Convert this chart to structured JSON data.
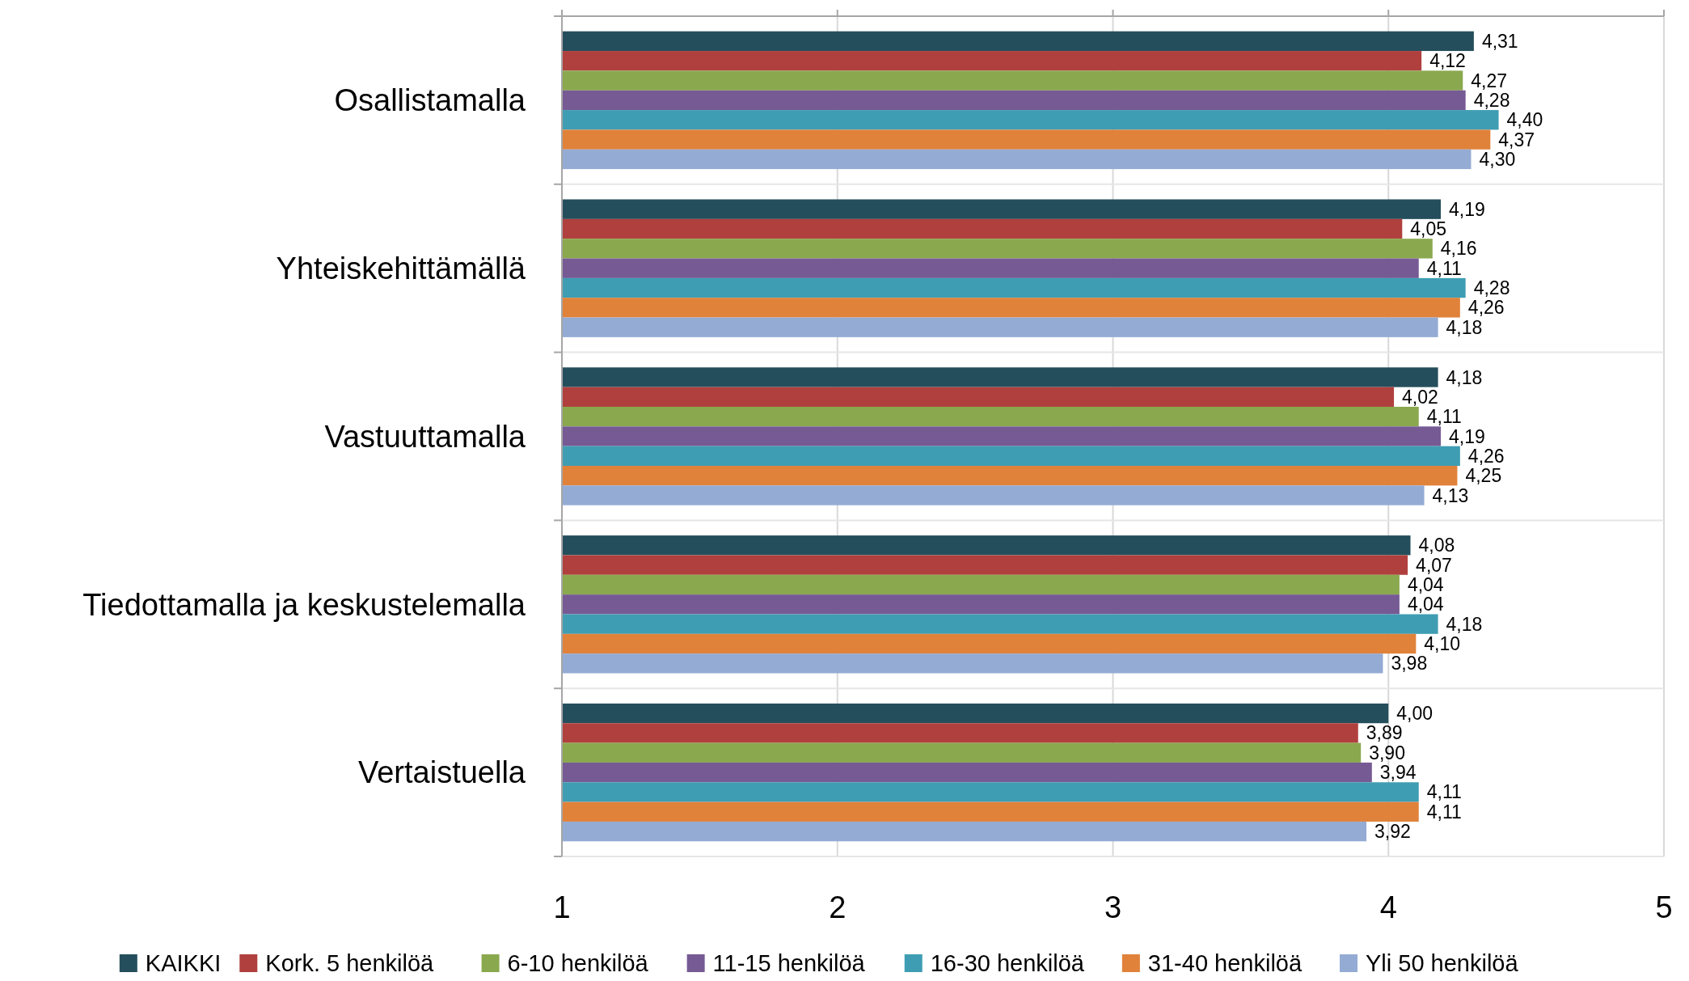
{
  "chart_data": {
    "type": "bar",
    "orientation": "horizontal",
    "categories": [
      "Osallistamalla",
      "Yhteiskehittämällä",
      "Vastuuttamalla",
      "Tiedottamalla ja keskustelemalla",
      "Vertaistuella"
    ],
    "series": [
      {
        "name": "KAIKKI",
        "color": "#254e5c",
        "values": [
          4.31,
          4.19,
          4.18,
          4.08,
          4.0
        ],
        "value_labels": [
          "4,31",
          "4,19",
          "4,18",
          "4,08",
          "4,00"
        ]
      },
      {
        "name": "Kork. 5 henkilöä",
        "color": "#b0403e",
        "values": [
          4.12,
          4.05,
          4.02,
          4.07,
          3.89
        ],
        "value_labels": [
          "4,12",
          "4,05",
          "4,02",
          "4,07",
          "3,89"
        ]
      },
      {
        "name": "6-10 henkilöä",
        "color": "#8aa84e",
        "values": [
          4.27,
          4.16,
          4.11,
          4.04,
          3.9
        ],
        "value_labels": [
          "4,27",
          "4,16",
          "4,11",
          "4,04",
          "3,90"
        ]
      },
      {
        "name": "11-15 henkilöä",
        "color": "#765a94",
        "values": [
          4.28,
          4.11,
          4.19,
          4.04,
          3.94
        ],
        "value_labels": [
          "4,28",
          "4,11",
          "4,19",
          "4,04",
          "3,94"
        ]
      },
      {
        "name": "16-30 henkilöä",
        "color": "#3f9db3",
        "values": [
          4.4,
          4.28,
          4.26,
          4.18,
          4.11
        ],
        "value_labels": [
          "4,40",
          "4,28",
          "4,26",
          "4,18",
          "4,11"
        ]
      },
      {
        "name": "31-40 henkilöä",
        "color": "#e0823a",
        "values": [
          4.37,
          4.26,
          4.25,
          4.1,
          4.11
        ],
        "value_labels": [
          "4,37",
          "4,26",
          "4,25",
          "4,10",
          "4,11"
        ]
      },
      {
        "name": "Yli 50 henkilöä",
        "color": "#94abd4",
        "values": [
          4.3,
          4.18,
          4.13,
          3.98,
          3.92
        ],
        "value_labels": [
          "4,30",
          "4,18",
          "4,13",
          "3,98",
          "3,92"
        ]
      }
    ],
    "xlim": [
      1,
      5
    ],
    "xticks": [
      1,
      2,
      3,
      4,
      5
    ],
    "grid": true,
    "legend": "bottom"
  }
}
